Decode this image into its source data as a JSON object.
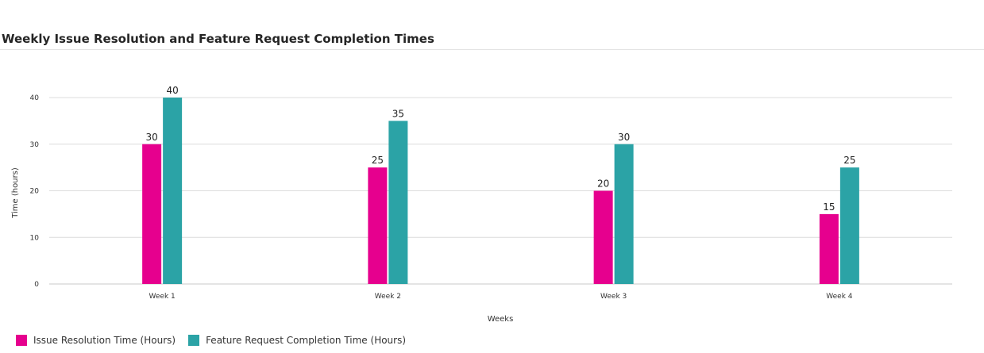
{
  "chart_data": {
    "type": "bar",
    "title": "Weekly Issue Resolution and Feature Request Completion Times",
    "xlabel": "Weeks",
    "ylabel": "Time (hours)",
    "categories": [
      "Week 1",
      "Week 2",
      "Week 3",
      "Week 4"
    ],
    "series": [
      {
        "name": "Issue Resolution Time (Hours)",
        "values": [
          30,
          25,
          20,
          15
        ],
        "color": "#e6008e"
      },
      {
        "name": "Feature Request Completion Time (Hours)",
        "values": [
          40,
          35,
          30,
          25
        ],
        "color": "#2ba3a6"
      }
    ],
    "yticks": [
      0,
      10,
      20,
      30,
      40
    ],
    "ylim": [
      0,
      40
    ],
    "grid": true,
    "legend_position": "bottom-left",
    "data_labels": true
  }
}
